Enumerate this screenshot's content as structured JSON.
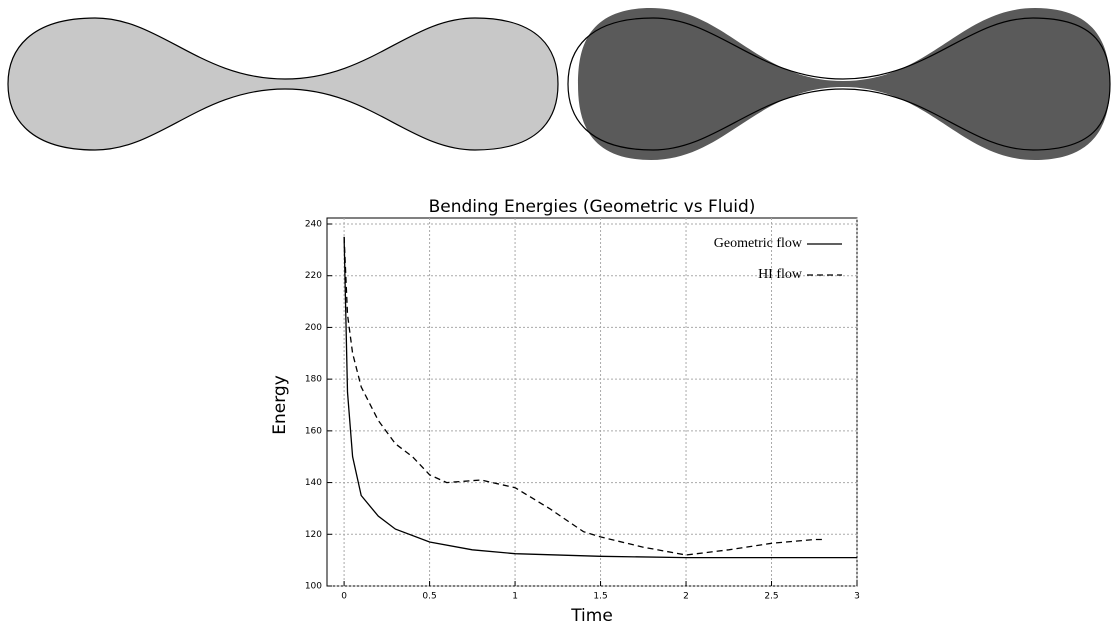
{
  "chart_data": {
    "type": "line",
    "title": "Bending Energies (Geometric vs Fluid)",
    "x_label": "Time",
    "y_label": "Energy",
    "xlim": [
      -0.1,
      3
    ],
    "xticks": [
      0,
      0.5,
      1,
      1.5,
      2,
      2.5,
      3
    ],
    "ylim": [
      100,
      240
    ],
    "yticks": [
      100,
      120,
      140,
      160,
      180,
      200,
      220,
      240
    ],
    "grid": true,
    "legend": "upper right",
    "series": [
      {
        "name": "Geometric flow",
        "color": "#000000",
        "dash": "solid",
        "x": [
          0,
          0.02,
          0.05,
          0.1,
          0.2,
          0.3,
          0.5,
          0.75,
          1,
          1.5,
          2,
          2.5,
          3
        ],
        "values": [
          235,
          175,
          150,
          135,
          127,
          122,
          117,
          114,
          112.5,
          111.5,
          111,
          111,
          111
        ]
      },
      {
        "name": "HI flow",
        "color": "#000000",
        "dash": "dashed",
        "x": [
          0,
          0.02,
          0.05,
          0.1,
          0.2,
          0.3,
          0.4,
          0.5,
          0.6,
          0.8,
          1,
          1.2,
          1.4,
          1.5,
          1.75,
          2,
          2.25,
          2.5,
          2.75,
          2.8
        ],
        "values": [
          235,
          205,
          190,
          177,
          164,
          155,
          150,
          143,
          140,
          141,
          138,
          130,
          121,
          119,
          115,
          112,
          114,
          116.5,
          118,
          118
        ]
      }
    ]
  }
}
